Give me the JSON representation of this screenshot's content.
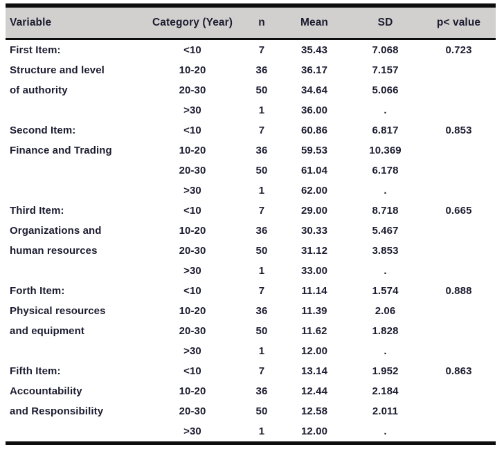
{
  "colors": {
    "page_bg": "#ffffff",
    "header_bg": "#d1d0ce",
    "text": "#1c1c30",
    "rule": "#0d0d0d"
  },
  "table": {
    "columns": [
      {
        "key": "variable",
        "label": "Variable"
      },
      {
        "key": "category",
        "label": "Category (Year)"
      },
      {
        "key": "n",
        "label": "n"
      },
      {
        "key": "mean",
        "label": "Mean"
      },
      {
        "key": "sd",
        "label": "SD"
      },
      {
        "key": "p",
        "label": "p< value"
      }
    ],
    "rows": [
      {
        "variable": "First Item:",
        "category": "<10",
        "n": "7",
        "mean": "35.43",
        "sd": "7.068",
        "p": "0.723"
      },
      {
        "variable": "Structure and level",
        "category": "10-20",
        "n": "36",
        "mean": "36.17",
        "sd": "7.157",
        "p": ""
      },
      {
        "variable": "of authority",
        "category": "20-30",
        "n": "50",
        "mean": "34.64",
        "sd": "5.066",
        "p": ""
      },
      {
        "variable": "",
        "category": ">30",
        "n": "1",
        "mean": "36.00",
        "sd": ".",
        "p": ""
      },
      {
        "variable": "Second Item:",
        "category": "<10",
        "n": "7",
        "mean": "60.86",
        "sd": "6.817",
        "p": "0.853"
      },
      {
        "variable": "Finance and Trading",
        "category": "10-20",
        "n": "36",
        "mean": "59.53",
        "sd": "10.369",
        "p": ""
      },
      {
        "variable": "",
        "category": "20-30",
        "n": "50",
        "mean": "61.04",
        "sd": "6.178",
        "p": ""
      },
      {
        "variable": "",
        "category": ">30",
        "n": "1",
        "mean": "62.00",
        "sd": ".",
        "p": ""
      },
      {
        "variable": "Third Item:",
        "category": "<10",
        "n": "7",
        "mean": "29.00",
        "sd": "8.718",
        "p": "0.665"
      },
      {
        "variable": "Organizations and",
        "category": "10-20",
        "n": "36",
        "mean": "30.33",
        "sd": "5.467",
        "p": ""
      },
      {
        "variable": "human resources",
        "category": "20-30",
        "n": "50",
        "mean": "31.12",
        "sd": "3.853",
        "p": ""
      },
      {
        "variable": "",
        "category": ">30",
        "n": "1",
        "mean": "33.00",
        "sd": ".",
        "p": ""
      },
      {
        "variable": "Forth Item:",
        "category": "<10",
        "n": "7",
        "mean": "11.14",
        "sd": "1.574",
        "p": "0.888"
      },
      {
        "variable": "Physical resources",
        "category": "10-20",
        "n": "36",
        "mean": "11.39",
        "sd": "2.06",
        "p": ""
      },
      {
        "variable": "and equipment",
        "category": "20-30",
        "n": "50",
        "mean": "11.62",
        "sd": "1.828",
        "p": ""
      },
      {
        "variable": "",
        "category": ">30",
        "n": "1",
        "mean": "12.00",
        "sd": ".",
        "p": ""
      },
      {
        "variable": "Fifth Item:",
        "category": "<10",
        "n": "7",
        "mean": "13.14",
        "sd": "1.952",
        "p": "0.863"
      },
      {
        "variable": "Accountability",
        "category": "10-20",
        "n": "36",
        "mean": "12.44",
        "sd": "2.184",
        "p": ""
      },
      {
        "variable": "and Responsibility",
        "category": "20-30",
        "n": "50",
        "mean": "12.58",
        "sd": "2.011",
        "p": ""
      },
      {
        "variable": "",
        "category": ">30",
        "n": "1",
        "mean": "12.00",
        "sd": ".",
        "p": ""
      }
    ]
  }
}
